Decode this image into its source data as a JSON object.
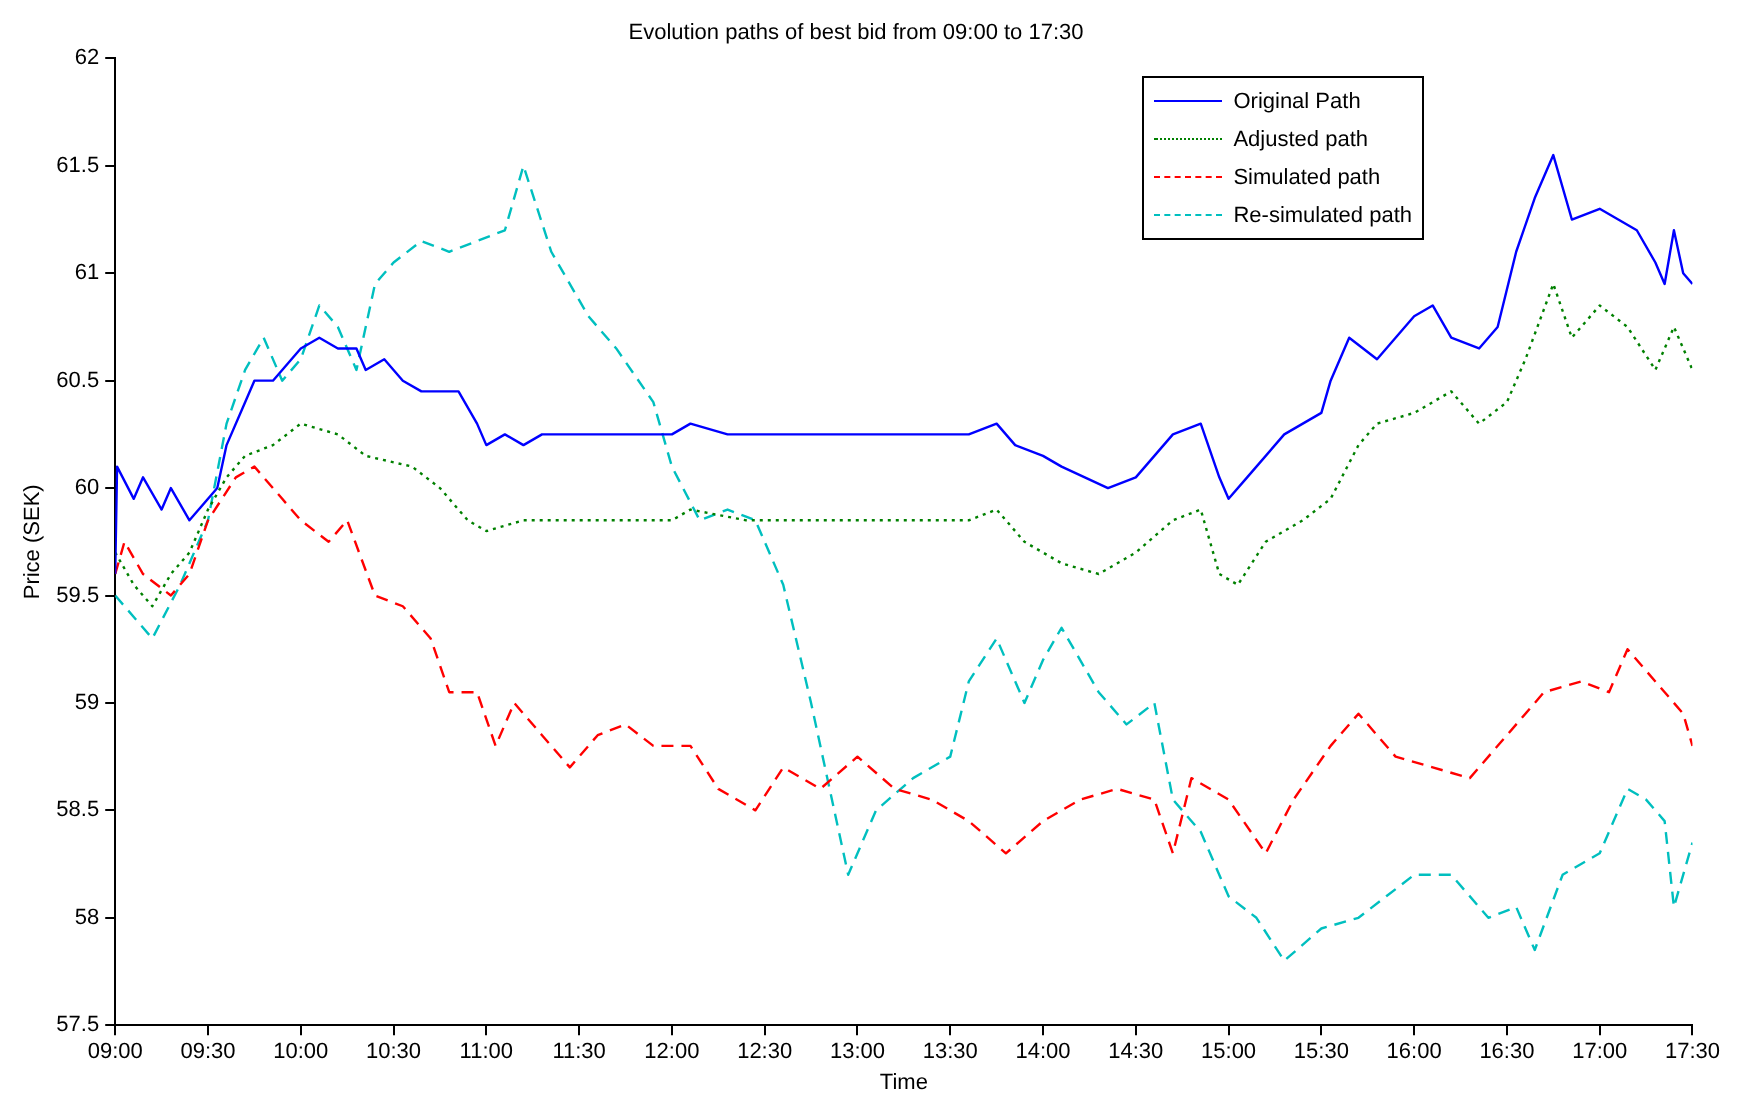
{
  "chart_data": {
    "type": "line",
    "title": "Evolution paths of best bid from 09:00 to 17:30",
    "xlabel": "Time",
    "ylabel": "Price (SEK)",
    "xlim": [
      9,
      17.5
    ],
    "xticks": [
      {
        "value": 9,
        "label": "09:00"
      },
      {
        "value": 9.5,
        "label": "09:30"
      },
      {
        "value": 10,
        "label": "10:00"
      },
      {
        "value": 10.5,
        "label": "10:30"
      },
      {
        "value": 11,
        "label": "11:00"
      },
      {
        "value": 11.5,
        "label": "11:30"
      },
      {
        "value": 12,
        "label": "12:00"
      },
      {
        "value": 12.5,
        "label": "12:30"
      },
      {
        "value": 13,
        "label": "13:00"
      },
      {
        "value": 13.5,
        "label": "13:30"
      },
      {
        "value": 14,
        "label": "14:00"
      },
      {
        "value": 14.5,
        "label": "14:30"
      },
      {
        "value": 15,
        "label": "15:00"
      },
      {
        "value": 15.5,
        "label": "15:30"
      },
      {
        "value": 16,
        "label": "16:00"
      },
      {
        "value": 16.5,
        "label": "16:30"
      },
      {
        "value": 17,
        "label": "17:00"
      },
      {
        "value": 17.5,
        "label": "17:30"
      }
    ],
    "ylim": [
      57.5,
      62
    ],
    "yticks": [
      57.5,
      58,
      58.5,
      59,
      59.5,
      60,
      60.5,
      61,
      61.5,
      62
    ],
    "grid": false,
    "legend": "top right",
    "marker": "none",
    "series": [
      {
        "name": "Original Path",
        "color": "#0000ff",
        "line_style": "solid",
        "x": [
          9,
          9.01,
          9.1,
          9.15,
          9.25,
          9.3,
          9.4,
          9.45,
          9.55,
          9.6,
          9.7,
          9.75,
          9.85,
          9.9,
          10,
          10.1,
          10.2,
          10.3,
          10.35,
          10.45,
          10.55,
          10.65,
          10.85,
          10.95,
          11,
          11.1,
          11.2,
          11.3,
          11.5,
          11.8,
          12,
          12.1,
          12.3,
          13,
          13.6,
          13.75,
          13.85,
          14,
          14.1,
          14.35,
          14.5,
          14.7,
          14.85,
          14.95,
          15,
          15.1,
          15.3,
          15.5,
          15.55,
          15.65,
          15.8,
          16,
          16.1,
          16.2,
          16.35,
          16.45,
          16.55,
          16.65,
          16.75,
          16.85,
          17,
          17.1,
          17.2,
          17.3,
          17.35,
          17.4,
          17.45,
          17.5
        ],
        "values": [
          59.6,
          60.1,
          59.95,
          60.05,
          59.9,
          60,
          59.85,
          59.9,
          60,
          60.2,
          60.4,
          60.5,
          60.5,
          60.55,
          60.65,
          60.7,
          60.65,
          60.65,
          60.55,
          60.6,
          60.5,
          60.45,
          60.45,
          60.3,
          60.2,
          60.25,
          60.2,
          60.25,
          60.25,
          60.25,
          60.25,
          60.3,
          60.25,
          60.25,
          60.25,
          60.3,
          60.2,
          60.15,
          60.1,
          60,
          60.05,
          60.25,
          60.3,
          60.05,
          59.95,
          60.05,
          60.25,
          60.35,
          60.5,
          60.7,
          60.6,
          60.8,
          60.85,
          60.7,
          60.65,
          60.75,
          61.1,
          61.35,
          61.55,
          61.25,
          61.3,
          61.25,
          61.2,
          61.05,
          60.95,
          61.2,
          61,
          60.95
        ]
      },
      {
        "name": "Adjusted path",
        "color": "#008000",
        "line_style": "dotted",
        "x": [
          9,
          9.1,
          9.2,
          9.3,
          9.4,
          9.5,
          9.6,
          9.7,
          9.85,
          10,
          10.2,
          10.35,
          10.6,
          10.75,
          10.9,
          11,
          11.2,
          11.5,
          12,
          12.1,
          12.4,
          13,
          13.6,
          13.75,
          13.9,
          14.1,
          14.3,
          14.5,
          14.7,
          14.85,
          14.95,
          15.05,
          15.2,
          15.4,
          15.55,
          15.7,
          15.8,
          16,
          16.2,
          16.35,
          16.5,
          16.6,
          16.75,
          16.85,
          17,
          17.15,
          17.3,
          17.4,
          17.5
        ],
        "values": [
          59.7,
          59.55,
          59.45,
          59.6,
          59.7,
          59.9,
          60.05,
          60.15,
          60.2,
          60.3,
          60.25,
          60.15,
          60.1,
          60,
          59.85,
          59.8,
          59.85,
          59.85,
          59.85,
          59.9,
          59.85,
          59.85,
          59.85,
          59.9,
          59.75,
          59.65,
          59.6,
          59.7,
          59.85,
          59.9,
          59.6,
          59.55,
          59.75,
          59.85,
          59.95,
          60.2,
          60.3,
          60.35,
          60.45,
          60.3,
          60.4,
          60.6,
          60.95,
          60.7,
          60.85,
          60.75,
          60.55,
          60.75,
          60.55
        ]
      },
      {
        "name": "Simulated path",
        "color": "#ff0000",
        "line_style": "dashed",
        "x": [
          9,
          9.05,
          9.15,
          9.3,
          9.4,
          9.5,
          9.65,
          9.75,
          9.9,
          10,
          10.15,
          10.25,
          10.4,
          10.55,
          10.7,
          10.8,
          10.95,
          11.05,
          11.15,
          11.3,
          11.45,
          11.6,
          11.75,
          11.9,
          12.1,
          12.25,
          12.45,
          12.6,
          12.8,
          13,
          13.2,
          13.4,
          13.6,
          13.8,
          14,
          14.2,
          14.4,
          14.6,
          14.7,
          14.8,
          15,
          15.2,
          15.35,
          15.55,
          15.7,
          15.9,
          16.1,
          16.3,
          16.5,
          16.7,
          16.9,
          17.05,
          17.15,
          17.3,
          17.45,
          17.5
        ],
        "values": [
          59.6,
          59.75,
          59.6,
          59.5,
          59.6,
          59.85,
          60.05,
          60.1,
          59.95,
          59.85,
          59.75,
          59.85,
          59.5,
          59.45,
          59.3,
          59.05,
          59.05,
          58.8,
          59,
          58.85,
          58.7,
          58.85,
          58.9,
          58.8,
          58.8,
          58.6,
          58.5,
          58.7,
          58.6,
          58.75,
          58.6,
          58.55,
          58.45,
          58.3,
          58.45,
          58.55,
          58.6,
          58.55,
          58.3,
          58.65,
          58.55,
          58.3,
          58.55,
          58.8,
          58.95,
          58.75,
          58.7,
          58.65,
          58.85,
          59.05,
          59.1,
          59.05,
          59.25,
          59.1,
          58.95,
          58.8
        ]
      },
      {
        "name": "Re-simulated path",
        "color": "#00bfbf",
        "line_style": "dashed",
        "x": [
          9,
          9.1,
          9.2,
          9.35,
          9.5,
          9.6,
          9.7,
          9.8,
          9.9,
          10,
          10.1,
          10.2,
          10.3,
          10.4,
          10.5,
          10.65,
          10.8,
          10.95,
          11.1,
          11.2,
          11.35,
          11.55,
          11.7,
          11.9,
          12,
          12.15,
          12.3,
          12.45,
          12.6,
          12.75,
          12.85,
          12.95,
          13.1,
          13.3,
          13.5,
          13.6,
          13.75,
          13.9,
          14,
          14.1,
          14.3,
          14.45,
          14.6,
          14.7,
          14.85,
          15,
          15.15,
          15.3,
          15.5,
          15.7,
          15.85,
          16,
          16.2,
          16.4,
          16.55,
          16.65,
          16.8,
          17,
          17.15,
          17.25,
          17.35,
          17.4,
          17.5
        ],
        "values": [
          59.5,
          59.4,
          59.3,
          59.55,
          59.85,
          60.3,
          60.55,
          60.7,
          60.5,
          60.6,
          60.85,
          60.75,
          60.55,
          60.95,
          61.05,
          61.15,
          61.1,
          61.15,
          61.2,
          61.5,
          61.1,
          60.8,
          60.65,
          60.4,
          60.1,
          59.85,
          59.9,
          59.85,
          59.55,
          59,
          58.6,
          58.2,
          58.5,
          58.65,
          58.75,
          59.1,
          59.3,
          59,
          59.2,
          59.35,
          59.05,
          58.9,
          59,
          58.55,
          58.4,
          58.1,
          58,
          57.8,
          57.95,
          58,
          58.1,
          58.2,
          58.2,
          58,
          58.05,
          57.85,
          58.2,
          58.3,
          58.6,
          58.55,
          58.45,
          58.05,
          58.35
        ]
      }
    ]
  }
}
